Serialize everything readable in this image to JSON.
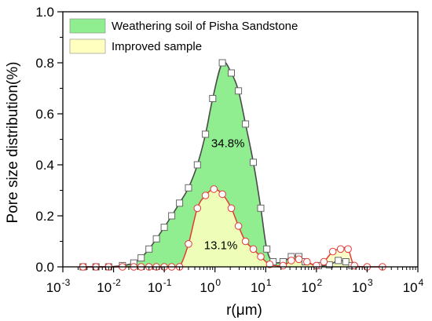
{
  "colors": {
    "green_fill": "#90EE90",
    "green_line": "#4a4a4a",
    "yellow_fill": "#FFFFC0",
    "red_line": "#E53935"
  },
  "chart_data": {
    "type": "area",
    "xscale": "log",
    "xlim": [
      0.001,
      10000
    ],
    "ylim": [
      0.0,
      1.0
    ],
    "xlabel": "r(μm)",
    "ylabel": "Pore size distribution(%)",
    "x_ticks": [
      0.001,
      0.01,
      0.1,
      1,
      10,
      100,
      1000,
      10000
    ],
    "x_tick_labels": [
      {
        "base": "10",
        "exp": "-3"
      },
      {
        "base": "10",
        "exp": "-2"
      },
      {
        "base": "10",
        "exp": "-1"
      },
      {
        "base": "10",
        "exp": "0"
      },
      {
        "base": "10",
        "exp": "1"
      },
      {
        "base": "10",
        "exp": "2"
      },
      {
        "base": "10",
        "exp": "3"
      },
      {
        "base": "10",
        "exp": "4"
      }
    ],
    "y_ticks": [
      0.0,
      0.2,
      0.4,
      0.6,
      0.8,
      1.0
    ],
    "y_tick_labels": [
      "0.0",
      "0.2",
      "0.4",
      "0.6",
      "0.8",
      "1.0"
    ],
    "legend_position": "top-left",
    "series": [
      {
        "name": "Weathering soil of Pisha Sandstone",
        "fill": "#90EE90",
        "line": "#4a4a4a",
        "marker": "square",
        "points": [
          [
            0.0025,
            0.0
          ],
          [
            0.0045,
            0.0
          ],
          [
            0.008,
            0.0
          ],
          [
            0.015,
            0.005
          ],
          [
            0.025,
            0.015
          ],
          [
            0.035,
            0.035
          ],
          [
            0.05,
            0.07
          ],
          [
            0.07,
            0.11
          ],
          [
            0.1,
            0.155
          ],
          [
            0.14,
            0.2
          ],
          [
            0.2,
            0.25
          ],
          [
            0.3,
            0.31
          ],
          [
            0.45,
            0.4
          ],
          [
            0.65,
            0.52
          ],
          [
            0.9,
            0.66
          ],
          [
            1.4,
            0.8
          ],
          [
            2.1,
            0.76
          ],
          [
            2.9,
            0.69
          ],
          [
            4.0,
            0.56
          ],
          [
            5.7,
            0.41
          ],
          [
            8.0,
            0.23
          ],
          [
            10.5,
            0.07
          ],
          [
            14,
            0.02
          ],
          [
            22,
            0.02
          ],
          [
            32,
            0.04
          ],
          [
            45,
            0.04
          ],
          [
            60,
            0.02
          ],
          [
            110,
            0.005
          ],
          [
            180,
            0.008
          ],
          [
            270,
            0.025
          ],
          [
            380,
            0.02
          ],
          [
            500,
            0.005
          ]
        ]
      },
      {
        "name": "Improved sample",
        "fill": "#FFFFC0",
        "line": "#E53935",
        "marker": "circle",
        "points": [
          [
            0.0025,
            0.0
          ],
          [
            0.0045,
            0.0
          ],
          [
            0.008,
            0.0
          ],
          [
            0.015,
            0.0
          ],
          [
            0.025,
            0.0
          ],
          [
            0.035,
            0.0
          ],
          [
            0.05,
            0.0
          ],
          [
            0.07,
            0.0
          ],
          [
            0.1,
            0.0
          ],
          [
            0.14,
            0.0
          ],
          [
            0.2,
            0.0
          ],
          [
            0.3,
            0.09
          ],
          [
            0.45,
            0.23
          ],
          [
            0.65,
            0.28
          ],
          [
            0.95,
            0.305
          ],
          [
            1.4,
            0.285
          ],
          [
            2.1,
            0.23
          ],
          [
            2.9,
            0.16
          ],
          [
            4.0,
            0.1
          ],
          [
            5.7,
            0.07
          ],
          [
            8.0,
            0.04
          ],
          [
            12,
            0.01
          ],
          [
            22,
            0.005
          ],
          [
            32,
            0.025
          ],
          [
            45,
            0.03
          ],
          [
            65,
            0.02
          ],
          [
            100,
            0.005
          ],
          [
            140,
            0.02
          ],
          [
            210,
            0.06
          ],
          [
            300,
            0.07
          ],
          [
            420,
            0.07
          ],
          [
            560,
            0.005
          ],
          [
            1000,
            0.0
          ],
          [
            2000,
            0.0
          ]
        ]
      }
    ],
    "annotations": [
      {
        "text": "34.8%",
        "x": 1.8,
        "y": 0.47
      },
      {
        "text": "13.1%",
        "x": 1.3,
        "y": 0.07
      }
    ]
  }
}
